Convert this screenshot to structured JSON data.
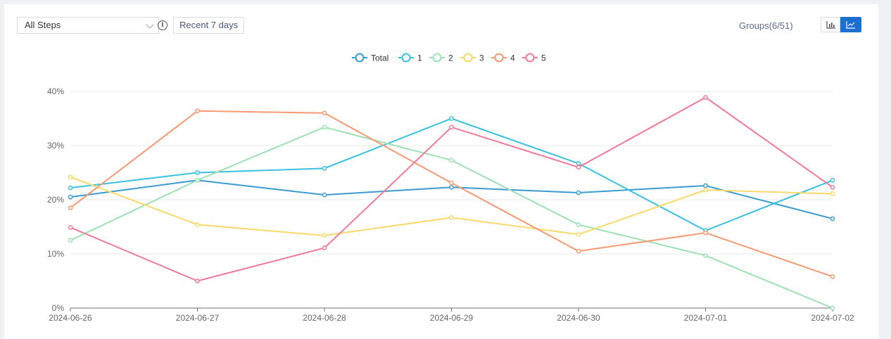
{
  "toolbar": {
    "steps_select_value": "All Steps",
    "info_icon": "info-icon",
    "range_label": "Recent 7 days",
    "groups_label": "Groups(6/51)",
    "bar_chart_icon": "bar-chart-icon",
    "line_chart_icon": "line-chart-icon",
    "active_view": "line"
  },
  "chart_data": {
    "type": "line",
    "x": [
      "2024-06-26",
      "2024-06-27",
      "2024-06-28",
      "2024-06-29",
      "2024-06-30",
      "2024-07-01",
      "2024-07-02"
    ],
    "ylim": [
      0,
      40
    ],
    "yticks": [
      "0%",
      "10%",
      "20%",
      "30%",
      "40%"
    ],
    "legend_position": "top-center",
    "grid": "horizontal",
    "series": [
      {
        "name": "Total",
        "color": "#3a9bd1",
        "values": [
          20.5,
          23.6,
          20.9,
          22.3,
          21.3,
          22.6,
          16.5
        ]
      },
      {
        "name": "1",
        "color": "#39c1df",
        "values": [
          22.2,
          25.0,
          25.8,
          35.0,
          26.7,
          14.3,
          23.6
        ]
      },
      {
        "name": "2",
        "color": "#9ce2b2",
        "values": [
          12.5,
          23.6,
          33.4,
          27.3,
          15.4,
          9.7,
          0.0
        ]
      },
      {
        "name": "3",
        "color": "#fad86a",
        "values": [
          24.2,
          15.4,
          13.4,
          16.7,
          13.6,
          21.8,
          21.1
        ]
      },
      {
        "name": "4",
        "color": "#f59a73",
        "values": [
          18.5,
          36.4,
          36.0,
          23.1,
          10.5,
          13.9,
          5.8
        ]
      },
      {
        "name": "5",
        "color": "#f07a98",
        "values": [
          14.9,
          5.0,
          11.1,
          33.4,
          26.0,
          38.9,
          22.3
        ]
      }
    ]
  }
}
